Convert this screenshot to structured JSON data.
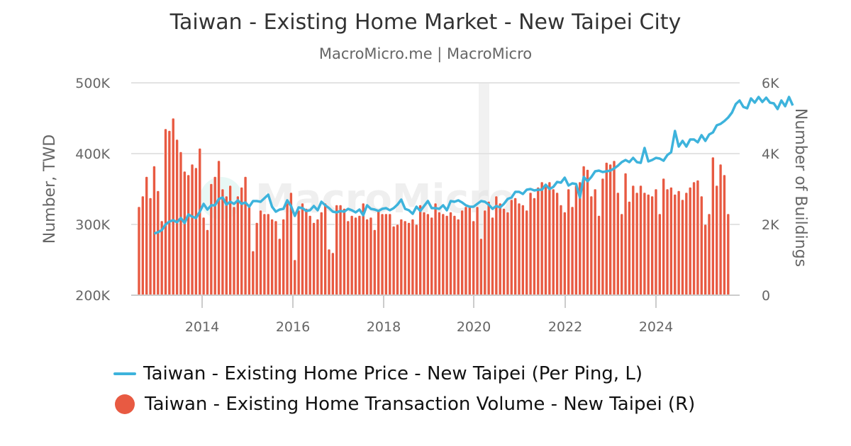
{
  "header": {
    "title": "Taiwan - Existing Home Market - New Taipei City",
    "subtitle": "MacroMicro.me | MacroMicro"
  },
  "watermark": "MacroMicro",
  "legend": {
    "items": [
      {
        "label": "Taiwan - Existing Home Price - New Taipei (Per Ping, L)",
        "color": "#3db3dc",
        "symbol": "line"
      },
      {
        "label": "Taiwan - Existing Home Transaction Volume - New Taipei (R)",
        "color": "#e85a42",
        "symbol": "circle"
      }
    ]
  },
  "axes": {
    "left": {
      "title": "Number, TWD",
      "ticks": [
        "500K",
        "400K",
        "300K",
        "200K"
      ]
    },
    "right": {
      "title": "Number of Buildings",
      "ticks": [
        "6K",
        "4K",
        "2K",
        "0"
      ]
    },
    "x": {
      "ticks": [
        "2014",
        "2016",
        "2018",
        "2020",
        "2022",
        "2024"
      ]
    }
  },
  "chart_data": {
    "type": "bar+line",
    "title": "Taiwan - Existing Home Market - New Taipei City",
    "subtitle": "MacroMicro.me | MacroMicro",
    "xlabel": "",
    "ylabel_left": "Number, TWD",
    "ylabel_right": "Number of Buildings",
    "ylim_left": [
      200000,
      500000
    ],
    "ylim_right": [
      0,
      6000
    ],
    "x_ticks": [
      "2014",
      "2016",
      "2018",
      "2020",
      "2022",
      "2024"
    ],
    "grid": true,
    "legend_position": "bottom",
    "shaded_region": {
      "from": "2020-02",
      "to": "2020-05",
      "color": "#eeeeee"
    },
    "x_start": "2012-09",
    "x_frequency": "monthly",
    "series": [
      {
        "name": "Taiwan - Existing Home Transaction Volume - New Taipei (R)",
        "type": "bar",
        "axis": "right",
        "color": "#e85a42",
        "start": "2012-09",
        "values": [
          2500,
          2800,
          3350,
          2750,
          3650,
          2950,
          2100,
          4700,
          4650,
          5000,
          4400,
          4050,
          3500,
          3400,
          3700,
          3600,
          4150,
          2200,
          1850,
          3150,
          3350,
          3800,
          3000,
          2800,
          3100,
          2500,
          2800,
          3050,
          3350,
          2500,
          1250,
          2050,
          2400,
          2300,
          2300,
          2150,
          2100,
          1600,
          2150,
          2600,
          2900,
          1000,
          2400,
          2600,
          2450,
          2250,
          2050,
          2150,
          2350,
          2600,
          1300,
          1200,
          2550,
          2550,
          2450,
          2100,
          2250,
          2200,
          2250,
          2600,
          2150,
          2200,
          1850,
          2400,
          2300,
          2300,
          2300,
          1950,
          2000,
          2150,
          2100,
          2050,
          2150,
          2000,
          2550,
          2350,
          2300,
          2200,
          2600,
          2350,
          2300,
          2250,
          2350,
          2250,
          2150,
          2400,
          2500,
          2500,
          2100,
          2500,
          1600,
          2400,
          2650,
          2200,
          2800,
          2600,
          2450,
          2350,
          2700,
          2750,
          2600,
          2550,
          2400,
          2900,
          2750,
          3050,
          3200,
          3100,
          3200,
          3000,
          2900,
          2550,
          2350,
          3000,
          2500,
          3100,
          3200,
          3650,
          3550,
          2800,
          3000,
          2250,
          3300,
          3750,
          3700,
          3800,
          2900,
          2300,
          3450,
          2650,
          3100,
          2900,
          3100,
          2900,
          2850,
          2800,
          3000,
          2300,
          3300,
          3000,
          3050,
          2850,
          2950,
          2700,
          2900,
          3050,
          3200,
          3250,
          2800,
          2000,
          2300,
          3900,
          3100,
          3700,
          3400,
          2300
        ]
      },
      {
        "name": "Taiwan - Existing Home Price - New Taipei (Per Ping, L)",
        "type": "line",
        "axis": "left",
        "color": "#3db3dc",
        "start": "2013-01",
        "values": [
          287000,
          289000,
          292000,
          300000,
          304000,
          306000,
          303000,
          309000,
          302000,
          314000,
          311000,
          309000,
          318000,
          329000,
          321000,
          327000,
          327000,
          336000,
          338000,
          328000,
          332000,
          329000,
          334000,
          329000,
          331000,
          325000,
          333000,
          333000,
          332000,
          337000,
          342000,
          325000,
          318000,
          321000,
          322000,
          334000,
          326000,
          312000,
          324000,
          323000,
          319000,
          320000,
          326000,
          320000,
          332000,
          327000,
          323000,
          318000,
          317000,
          319000,
          318000,
          322000,
          320000,
          317000,
          321000,
          313000,
          327000,
          322000,
          321000,
          319000,
          322000,
          323000,
          320000,
          323000,
          328000,
          335000,
          322000,
          320000,
          315000,
          325000,
          319000,
          326000,
          333000,
          323000,
          323000,
          322000,
          327000,
          320000,
          333000,
          332000,
          334000,
          331000,
          327000,
          325000,
          325000,
          329000,
          333000,
          332000,
          328000,
          322000,
          326000,
          324000,
          329000,
          336000,
          338000,
          346000,
          346000,
          343000,
          349000,
          350000,
          348000,
          349000,
          349000,
          356000,
          350000,
          353000,
          360000,
          359000,
          366000,
          355000,
          358000,
          357000,
          338000,
          367000,
          361000,
          367000,
          375000,
          376000,
          374000,
          375000,
          376000,
          379000,
          383000,
          388000,
          391000,
          388000,
          394000,
          388000,
          387000,
          408000,
          389000,
          391000,
          394000,
          393000,
          390000,
          398000,
          402000,
          432000,
          410000,
          418000,
          410000,
          420000,
          420000,
          416000,
          426000,
          418000,
          427000,
          430000,
          440000,
          442000,
          446000,
          451000,
          458000,
          470000,
          475000,
          466000,
          464000,
          478000,
          472000,
          480000,
          473000,
          479000,
          472000,
          471000,
          463000,
          475000,
          467000,
          480000,
          468000
        ]
      }
    ]
  }
}
